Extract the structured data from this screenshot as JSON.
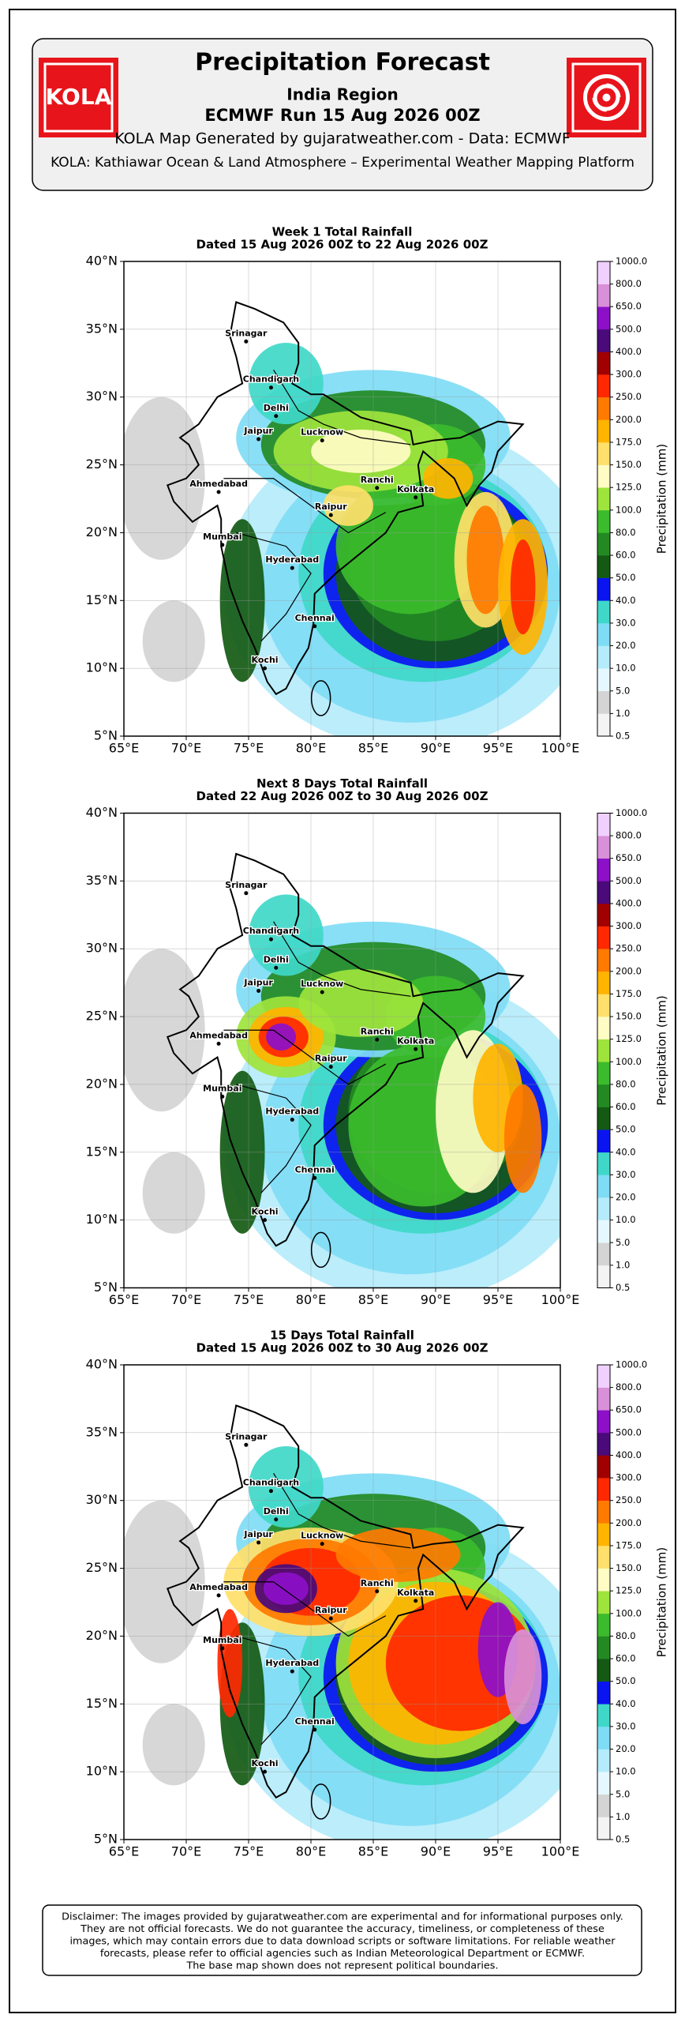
{
  "header": {
    "logo_text": "KOLA",
    "title": "Precipitation Forecast",
    "region": "India Region",
    "run": "ECMWF Run 15 Aug 2026 00Z",
    "credit": "KOLA Map Generated by gujaratweather.com - Data: ECMWF",
    "platform": "KOLA: Kathiawar Ocean & Land Atmosphere – Experimental Weather Mapping Platform"
  },
  "panels": [
    {
      "title": "Week 1 Total Rainfall",
      "dates": "Dated 15 Aug 2026 00Z to 22 Aug 2026 00Z"
    },
    {
      "title": "Next 8 Days Total Rainfall",
      "dates": "Dated 22 Aug 2026 00Z to 30 Aug 2026 00Z"
    },
    {
      "title": "15 Days Total Rainfall",
      "dates": "Dated 15 Aug 2026 00Z to 30 Aug 2026 00Z"
    }
  ],
  "map_axes": {
    "lon_ticks": [
      "65°E",
      "70°E",
      "75°E",
      "80°E",
      "85°E",
      "90°E",
      "95°E",
      "100°E"
    ],
    "lat_ticks": [
      "5°N",
      "10°N",
      "15°N",
      "20°N",
      "25°N",
      "30°N",
      "35°N",
      "40°N"
    ]
  },
  "cities": [
    "Srinagar",
    "Chandigarh",
    "Delhi",
    "Jaipur",
    "Lucknow",
    "Ahmedabad",
    "Ranchi",
    "Kolkata",
    "Raipur",
    "Mumbai",
    "Hyderabad",
    "Chennai",
    "Kochi"
  ],
  "colorbar": {
    "label": "Precipitation (mm)",
    "ticks": [
      "0.5",
      "1.0",
      "5.0",
      "10.0",
      "20.0",
      "30.0",
      "40.0",
      "50.0",
      "60.0",
      "80.0",
      "100.0",
      "125.0",
      "150.0",
      "175.0",
      "200.0",
      "250.0",
      "300.0",
      "400.0",
      "500.0",
      "650.0",
      "800.0",
      "1000.0"
    ],
    "colors": [
      "#f4f4f4",
      "#d4d4d4",
      "#e6f8ff",
      "#b5ecfb",
      "#7fdcf5",
      "#3fd8c8",
      "#0a14f0",
      "#145a14",
      "#238a23",
      "#3cbc2c",
      "#9ee43c",
      "#fffcc4",
      "#ffe06a",
      "#ffb400",
      "#ff7a00",
      "#ff2800",
      "#a00000",
      "#4a0a7a",
      "#8c10c8",
      "#d890d8",
      "#f0d0ff"
    ]
  },
  "disclaimer": [
    "Disclaimer: The images provided by gujaratweather.com are experimental and for informational purposes only.",
    "They are not official forecasts. We do not guarantee the accuracy, timeliness, or completeness of these",
    "images, which may contain errors due to data download scripts or software limitations. For reliable weather",
    "forecasts, please refer to official agencies such as Indian Meteorological Department or ECMWF.",
    "The base map shown does not represent political boundaries."
  ]
}
